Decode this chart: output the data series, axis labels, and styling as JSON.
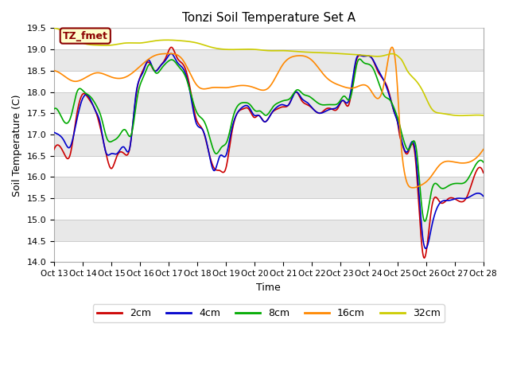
{
  "title": "Tonzi Soil Temperature Set A",
  "xlabel": "Time",
  "ylabel": "Soil Temperature (C)",
  "ylim": [
    14.0,
    19.5
  ],
  "yticks": [
    14.0,
    14.5,
    15.0,
    15.5,
    16.0,
    16.5,
    17.0,
    17.5,
    18.0,
    18.5,
    19.0,
    19.5
  ],
  "xtick_labels": [
    "Oct 13",
    "Oct 14",
    "Oct 15",
    "Oct 16",
    "Oct 17",
    "Oct 18",
    "Oct 19",
    "Oct 20",
    "Oct 21",
    "Oct 22",
    "Oct 23",
    "Oct 24",
    "Oct 25",
    "Oct 26",
    "Oct 27",
    "Oct 28"
  ],
  "colors": {
    "2cm": "#cc0000",
    "4cm": "#0000cc",
    "8cm": "#00aa00",
    "16cm": "#ff8800",
    "32cm": "#cccc00"
  },
  "annotation": "TZ_fmet",
  "bg_color": "#ffffff",
  "plot_bg": "#e8e8e8",
  "alt_band_color": "#f5f5f5",
  "curve_2cm_x": [
    0,
    0.15,
    0.35,
    0.55,
    0.75,
    1.0,
    1.2,
    1.45,
    1.6,
    1.8,
    2.0,
    2.2,
    2.45,
    2.65,
    2.85,
    3.1,
    3.3,
    3.5,
    3.7,
    3.9,
    4.1,
    4.3,
    4.55,
    4.75,
    4.95,
    5.2,
    5.4,
    5.6,
    5.8,
    6.0,
    6.2,
    6.4,
    6.6,
    6.8,
    7.0,
    7.15,
    7.35,
    7.6,
    7.8,
    8.0,
    8.2,
    8.45,
    8.65,
    8.85,
    9.05,
    9.3,
    9.5,
    9.7,
    9.9,
    10.1,
    10.3,
    10.55,
    10.75,
    10.95,
    11.1,
    11.3,
    11.5,
    11.7,
    11.9,
    12.0,
    12.07,
    12.15,
    12.35,
    12.6,
    12.9,
    13.2,
    13.5,
    13.8,
    14.1,
    14.4,
    14.7,
    15.0
  ],
  "curve_2cm_y": [
    16.65,
    16.75,
    16.55,
    16.5,
    17.3,
    17.95,
    17.85,
    17.55,
    17.2,
    16.6,
    16.2,
    16.5,
    16.55,
    16.7,
    17.85,
    18.5,
    18.7,
    18.5,
    18.6,
    18.8,
    19.05,
    18.8,
    18.6,
    18.1,
    17.4,
    17.1,
    16.6,
    16.2,
    16.15,
    16.2,
    17.0,
    17.5,
    17.6,
    17.6,
    17.4,
    17.45,
    17.3,
    17.5,
    17.6,
    17.65,
    17.7,
    18.0,
    17.8,
    17.7,
    17.6,
    17.5,
    17.6,
    17.6,
    17.6,
    17.8,
    17.7,
    18.7,
    18.85,
    18.85,
    18.8,
    18.5,
    18.3,
    18.0,
    17.5,
    17.3,
    17.0,
    16.8,
    16.55,
    16.6,
    14.15,
    15.3,
    15.4,
    15.5,
    15.45,
    15.5,
    16.05,
    16.1
  ],
  "curve_4cm_x": [
    0,
    0.15,
    0.35,
    0.55,
    0.75,
    1.0,
    1.2,
    1.45,
    1.6,
    1.8,
    2.0,
    2.2,
    2.45,
    2.65,
    2.85,
    3.1,
    3.3,
    3.5,
    3.7,
    3.9,
    4.1,
    4.3,
    4.55,
    4.75,
    4.95,
    5.2,
    5.4,
    5.6,
    5.8,
    6.0,
    6.2,
    6.4,
    6.6,
    6.8,
    7.0,
    7.15,
    7.35,
    7.6,
    7.8,
    8.0,
    8.2,
    8.45,
    8.65,
    8.85,
    9.05,
    9.3,
    9.5,
    9.7,
    9.9,
    10.1,
    10.3,
    10.55,
    10.75,
    10.95,
    11.1,
    11.3,
    11.5,
    11.7,
    11.9,
    12.0,
    12.07,
    12.15,
    12.35,
    12.6,
    12.9,
    13.2,
    13.5,
    13.8,
    14.1,
    14.4,
    14.7,
    15.0
  ],
  "curve_4cm_y": [
    17.05,
    17.0,
    16.85,
    16.7,
    17.2,
    17.85,
    17.9,
    17.55,
    17.3,
    16.6,
    16.55,
    16.55,
    16.7,
    16.7,
    17.9,
    18.45,
    18.75,
    18.5,
    18.6,
    18.75,
    18.9,
    18.7,
    18.5,
    18.0,
    17.3,
    17.1,
    16.6,
    16.15,
    16.5,
    16.5,
    17.1,
    17.5,
    17.65,
    17.65,
    17.45,
    17.45,
    17.3,
    17.5,
    17.65,
    17.7,
    17.7,
    18.0,
    17.85,
    17.75,
    17.6,
    17.5,
    17.55,
    17.6,
    17.65,
    17.8,
    17.8,
    18.75,
    18.85,
    18.85,
    18.8,
    18.55,
    18.3,
    17.95,
    17.5,
    17.3,
    17.1,
    16.85,
    16.6,
    16.7,
    14.5,
    14.85,
    15.4,
    15.45,
    15.5,
    15.5,
    15.6,
    15.55
  ],
  "curve_8cm_x": [
    0,
    0.15,
    0.35,
    0.6,
    0.8,
    1.05,
    1.25,
    1.5,
    1.65,
    1.85,
    2.05,
    2.25,
    2.5,
    2.7,
    2.9,
    3.15,
    3.35,
    3.55,
    3.75,
    3.95,
    4.15,
    4.35,
    4.6,
    4.8,
    5.0,
    5.25,
    5.45,
    5.65,
    5.85,
    6.05,
    6.25,
    6.45,
    6.65,
    6.85,
    7.05,
    7.2,
    7.4,
    7.65,
    7.85,
    8.05,
    8.25,
    8.5,
    8.7,
    8.9,
    9.1,
    9.35,
    9.55,
    9.75,
    9.95,
    10.15,
    10.35,
    10.6,
    10.8,
    11.0,
    11.15,
    11.35,
    11.55,
    11.75,
    11.95,
    12.05,
    12.12,
    12.2,
    12.4,
    12.65,
    12.9,
    13.2,
    13.5,
    13.8,
    14.1,
    14.4,
    14.7,
    15.0
  ],
  "curve_8cm_y": [
    17.6,
    17.55,
    17.3,
    17.45,
    18.0,
    18.0,
    17.9,
    17.65,
    17.4,
    16.9,
    16.85,
    16.95,
    17.1,
    17.0,
    17.85,
    18.4,
    18.65,
    18.45,
    18.55,
    18.7,
    18.75,
    18.6,
    18.35,
    17.9,
    17.5,
    17.3,
    16.9,
    16.55,
    16.7,
    16.85,
    17.4,
    17.7,
    17.75,
    17.7,
    17.55,
    17.55,
    17.45,
    17.65,
    17.75,
    17.8,
    17.85,
    18.05,
    17.95,
    17.9,
    17.8,
    17.7,
    17.7,
    17.7,
    17.75,
    17.9,
    17.85,
    18.7,
    18.7,
    18.65,
    18.55,
    18.2,
    17.9,
    17.8,
    17.5,
    17.3,
    17.1,
    16.9,
    16.65,
    16.7,
    15.05,
    15.7,
    15.75,
    15.8,
    15.85,
    15.9,
    16.25,
    16.35
  ],
  "curve_16cm_x": [
    0,
    0.3,
    0.7,
    1.0,
    1.5,
    2.0,
    2.5,
    3.0,
    3.5,
    4.0,
    4.5,
    5.0,
    5.5,
    6.0,
    6.5,
    7.0,
    7.5,
    8.0,
    8.5,
    9.0,
    9.5,
    10.0,
    10.5,
    11.0,
    11.5,
    12.0,
    12.05,
    12.2,
    12.5,
    12.8,
    13.1,
    13.5,
    14.0,
    14.5,
    15.0
  ],
  "curve_16cm_y": [
    18.5,
    18.4,
    18.25,
    18.3,
    18.45,
    18.35,
    18.35,
    18.6,
    18.85,
    18.9,
    18.75,
    18.15,
    18.1,
    18.1,
    18.15,
    18.1,
    18.1,
    18.65,
    18.85,
    18.75,
    18.35,
    18.15,
    18.1,
    18.1,
    18.1,
    18.1,
    17.5,
    16.3,
    15.75,
    15.8,
    15.95,
    16.3,
    16.35,
    16.35,
    16.65
  ],
  "curve_32cm_x": [
    0,
    0.5,
    1.0,
    1.5,
    2.0,
    2.5,
    3.0,
    3.5,
    4.0,
    4.5,
    5.0,
    5.5,
    6.0,
    6.5,
    7.0,
    7.5,
    8.0,
    8.5,
    9.0,
    9.5,
    10.0,
    10.5,
    11.0,
    11.5,
    12.0,
    12.05,
    12.15,
    12.3,
    12.6,
    12.9,
    13.2,
    13.5,
    14.0,
    14.5,
    15.0
  ],
  "curve_32cm_y": [
    19.5,
    19.35,
    19.15,
    19.1,
    19.1,
    19.15,
    19.15,
    19.2,
    19.22,
    19.2,
    19.15,
    19.05,
    19.0,
    19.0,
    19.0,
    18.97,
    18.97,
    18.95,
    18.93,
    18.92,
    18.9,
    18.88,
    18.85,
    18.85,
    18.85,
    18.82,
    18.75,
    18.55,
    18.3,
    18.0,
    17.6,
    17.5,
    17.45,
    17.45,
    17.45
  ]
}
